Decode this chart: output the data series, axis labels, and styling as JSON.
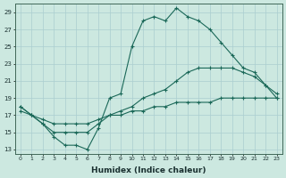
{
  "xlabel": "Humidex (Indice chaleur)",
  "bg_color": "#cce8e0",
  "grid_color": "#aaced0",
  "line_color": "#1a6858",
  "xlim": [
    -0.5,
    23.5
  ],
  "ylim": [
    12.5,
    30
  ],
  "yticks": [
    13,
    15,
    17,
    19,
    21,
    23,
    25,
    27,
    29
  ],
  "xticks": [
    0,
    1,
    2,
    3,
    4,
    5,
    6,
    7,
    8,
    9,
    10,
    11,
    12,
    13,
    14,
    15,
    16,
    17,
    18,
    19,
    20,
    21,
    22,
    23
  ],
  "line1_x": [
    0,
    1,
    2,
    3,
    4,
    5,
    6,
    7,
    8,
    9,
    10,
    11,
    12,
    13,
    14,
    15,
    16,
    17,
    18,
    19,
    20,
    21,
    22,
    23
  ],
  "line1_y": [
    18,
    17,
    16,
    14.5,
    13.5,
    13.5,
    13,
    15.5,
    19,
    19.5,
    25,
    28,
    28.5,
    28,
    29.5,
    28.5,
    28,
    27,
    25.5,
    24,
    22.5,
    22,
    20.5,
    19
  ],
  "line2_x": [
    0,
    1,
    2,
    3,
    4,
    5,
    6,
    7,
    8,
    9,
    10,
    11,
    12,
    13,
    14,
    15,
    16,
    17,
    18,
    19,
    20,
    21,
    22,
    23
  ],
  "line2_y": [
    18,
    17,
    16,
    15,
    15,
    15,
    15,
    16,
    17,
    17.5,
    18,
    19,
    19.5,
    20,
    21,
    22,
    22.5,
    22.5,
    22.5,
    22.5,
    22,
    21.5,
    20.5,
    19.5
  ],
  "line3_x": [
    0,
    1,
    2,
    3,
    4,
    5,
    6,
    7,
    8,
    9,
    10,
    11,
    12,
    13,
    14,
    15,
    16,
    17,
    18,
    19,
    20,
    21,
    22,
    23
  ],
  "line3_y": [
    17.5,
    17,
    16.5,
    16,
    16,
    16,
    16,
    16.5,
    17,
    17,
    17.5,
    17.5,
    18,
    18,
    18.5,
    18.5,
    18.5,
    18.5,
    19,
    19,
    19,
    19,
    19,
    19
  ]
}
